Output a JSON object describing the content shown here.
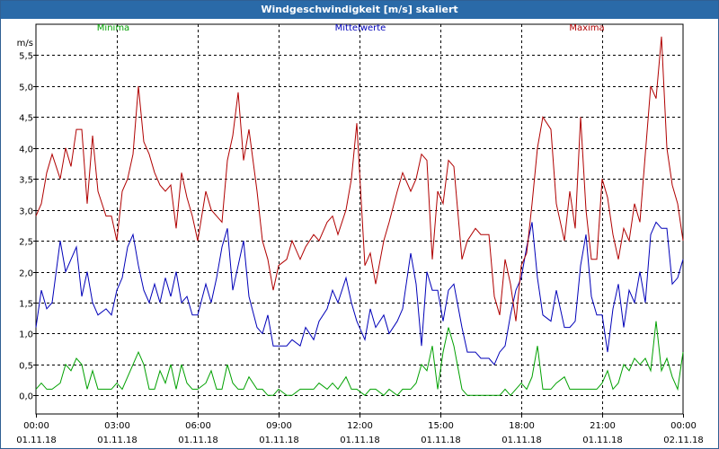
{
  "window": {
    "title": "Windgeschwindigkeit [m/s] skaliert"
  },
  "chart_data": {
    "type": "line",
    "title": "Windgeschwindigkeit [m/s] skaliert",
    "ylabel": "m/s",
    "ylim": [
      -0.3,
      6.0
    ],
    "yticks": [
      {
        "value": 0.0,
        "label": "0,0"
      },
      {
        "value": 0.5,
        "label": "0,5"
      },
      {
        "value": 1.0,
        "label": "1,0"
      },
      {
        "value": 1.5,
        "label": "1,5"
      },
      {
        "value": 2.0,
        "label": "2,0"
      },
      {
        "value": 2.5,
        "label": "2,5"
      },
      {
        "value": 3.0,
        "label": "3,0"
      },
      {
        "value": 3.5,
        "label": "3,5"
      },
      {
        "value": 4.0,
        "label": "4,0"
      },
      {
        "value": 4.5,
        "label": "4,5"
      },
      {
        "value": 5.0,
        "label": "5,0"
      },
      {
        "value": 5.5,
        "label": "5,5"
      }
    ],
    "xlim": [
      0,
      24
    ],
    "xticks": [
      {
        "hours": 0,
        "time": "00:00",
        "date": "01.11.18"
      },
      {
        "hours": 3,
        "time": "03:00",
        "date": "01.11.18"
      },
      {
        "hours": 6,
        "time": "06:00",
        "date": "01.11.18"
      },
      {
        "hours": 9,
        "time": "09:00",
        "date": "01.11.18"
      },
      {
        "hours": 12,
        "time": "12:00",
        "date": "01.11.18"
      },
      {
        "hours": 15,
        "time": "15:00",
        "date": "01.11.18"
      },
      {
        "hours": 18,
        "time": "18:00",
        "date": "01.11.18"
      },
      {
        "hours": 21,
        "time": "21:00",
        "date": "01.11.18"
      },
      {
        "hours": 24,
        "time": "00:00",
        "date": "02.11.18"
      }
    ],
    "grid": true,
    "legend": "top",
    "series": [
      {
        "name": "Minima",
        "color": "#00a000",
        "x": [
          0.0,
          0.2,
          0.4,
          0.6,
          0.9,
          1.1,
          1.3,
          1.5,
          1.7,
          1.9,
          2.1,
          2.3,
          2.6,
          2.8,
          3.0,
          3.2,
          3.4,
          3.6,
          3.8,
          4.0,
          4.2,
          4.4,
          4.6,
          4.8,
          5.0,
          5.2,
          5.4,
          5.6,
          5.8,
          6.0,
          6.3,
          6.5,
          6.7,
          6.9,
          7.1,
          7.3,
          7.5,
          7.7,
          7.9,
          8.2,
          8.4,
          8.6,
          8.8,
          9.0,
          9.3,
          9.5,
          9.8,
          10.0,
          10.3,
          10.5,
          10.8,
          11.0,
          11.2,
          11.5,
          11.7,
          11.9,
          12.2,
          12.4,
          12.6,
          12.9,
          13.1,
          13.4,
          13.6,
          13.9,
          14.1,
          14.3,
          14.5,
          14.7,
          14.9,
          15.1,
          15.3,
          15.5,
          15.8,
          16.0,
          16.3,
          16.5,
          16.8,
          17.0,
          17.2,
          17.4,
          17.6,
          17.8,
          18.0,
          18.2,
          18.4,
          18.6,
          18.8,
          19.1,
          19.3,
          19.6,
          19.8,
          20.0,
          20.2,
          20.4,
          20.6,
          20.8,
          21.0,
          21.2,
          21.4,
          21.6,
          21.8,
          22.0,
          22.2,
          22.4,
          22.6,
          22.8,
          23.0,
          23.2,
          23.4,
          23.6,
          23.8,
          24.0
        ],
        "values": [
          0.1,
          0.2,
          0.1,
          0.1,
          0.2,
          0.5,
          0.4,
          0.6,
          0.5,
          0.1,
          0.4,
          0.1,
          0.1,
          0.1,
          0.2,
          0.1,
          0.3,
          0.5,
          0.7,
          0.5,
          0.1,
          0.1,
          0.4,
          0.2,
          0.5,
          0.1,
          0.5,
          0.2,
          0.1,
          0.1,
          0.2,
          0.4,
          0.1,
          0.1,
          0.5,
          0.2,
          0.1,
          0.1,
          0.3,
          0.1,
          0.1,
          0.0,
          0.0,
          0.1,
          0.0,
          0.0,
          0.1,
          0.1,
          0.1,
          0.2,
          0.1,
          0.2,
          0.1,
          0.3,
          0.1,
          0.1,
          0.0,
          0.1,
          0.1,
          0.0,
          0.1,
          0.0,
          0.1,
          0.1,
          0.2,
          0.5,
          0.4,
          0.8,
          0.1,
          0.7,
          1.1,
          0.8,
          0.1,
          0.0,
          0.0,
          0.0,
          0.0,
          0.0,
          0.0,
          0.1,
          0.0,
          0.1,
          0.2,
          0.1,
          0.3,
          0.8,
          0.1,
          0.1,
          0.2,
          0.3,
          0.1,
          0.1,
          0.1,
          0.1,
          0.1,
          0.1,
          0.2,
          0.4,
          0.1,
          0.2,
          0.5,
          0.4,
          0.6,
          0.5,
          0.6,
          0.4,
          1.2,
          0.4,
          0.6,
          0.3,
          0.1,
          0.7
        ]
      },
      {
        "name": "Mittelwerte",
        "color": "#0000b8",
        "x": [
          0.0,
          0.2,
          0.4,
          0.6,
          0.9,
          1.1,
          1.3,
          1.5,
          1.7,
          1.9,
          2.1,
          2.3,
          2.6,
          2.8,
          3.0,
          3.2,
          3.4,
          3.6,
          3.8,
          4.0,
          4.2,
          4.4,
          4.6,
          4.8,
          5.0,
          5.2,
          5.4,
          5.6,
          5.8,
          6.0,
          6.3,
          6.5,
          6.7,
          6.9,
          7.1,
          7.3,
          7.5,
          7.7,
          7.9,
          8.2,
          8.4,
          8.6,
          8.8,
          9.0,
          9.3,
          9.5,
          9.8,
          10.0,
          10.3,
          10.5,
          10.8,
          11.0,
          11.2,
          11.5,
          11.7,
          11.9,
          12.2,
          12.4,
          12.6,
          12.9,
          13.1,
          13.4,
          13.6,
          13.9,
          14.1,
          14.3,
          14.5,
          14.7,
          14.9,
          15.1,
          15.3,
          15.5,
          15.8,
          16.0,
          16.3,
          16.5,
          16.8,
          17.0,
          17.2,
          17.4,
          17.6,
          17.8,
          18.0,
          18.2,
          18.4,
          18.6,
          18.8,
          19.1,
          19.3,
          19.6,
          19.8,
          20.0,
          20.2,
          20.4,
          20.6,
          20.8,
          21.0,
          21.2,
          21.4,
          21.6,
          21.8,
          22.0,
          22.2,
          22.4,
          22.6,
          22.8,
          23.0,
          23.2,
          23.4,
          23.6,
          23.8,
          24.0
        ],
        "values": [
          1.1,
          1.7,
          1.4,
          1.5,
          2.5,
          2.0,
          2.2,
          2.4,
          1.6,
          2.0,
          1.5,
          1.3,
          1.4,
          1.3,
          1.7,
          1.9,
          2.4,
          2.6,
          2.1,
          1.7,
          1.5,
          1.8,
          1.5,
          1.9,
          1.6,
          2.0,
          1.5,
          1.6,
          1.3,
          1.3,
          1.8,
          1.5,
          1.9,
          2.4,
          2.7,
          1.7,
          2.1,
          2.5,
          1.6,
          1.1,
          1.0,
          1.3,
          0.8,
          0.8,
          0.8,
          0.9,
          0.8,
          1.1,
          0.9,
          1.2,
          1.4,
          1.7,
          1.5,
          1.9,
          1.5,
          1.2,
          0.9,
          1.4,
          1.1,
          1.3,
          1.0,
          1.2,
          1.4,
          2.3,
          1.8,
          0.8,
          2.0,
          1.7,
          1.7,
          1.2,
          1.7,
          1.8,
          1.1,
          0.7,
          0.7,
          0.6,
          0.6,
          0.5,
          0.7,
          0.8,
          1.3,
          1.7,
          1.9,
          2.4,
          2.8,
          1.9,
          1.3,
          1.2,
          1.7,
          1.1,
          1.1,
          1.2,
          2.1,
          2.6,
          1.6,
          1.3,
          1.3,
          0.7,
          1.4,
          1.8,
          1.1,
          1.7,
          1.5,
          2.0,
          1.5,
          2.6,
          2.8,
          2.7,
          2.7,
          1.8,
          1.9,
          2.2
        ]
      },
      {
        "name": "Maxima",
        "color": "#b00000",
        "x": [
          0.0,
          0.2,
          0.4,
          0.6,
          0.9,
          1.1,
          1.3,
          1.5,
          1.7,
          1.9,
          2.1,
          2.3,
          2.6,
          2.8,
          3.0,
          3.2,
          3.4,
          3.6,
          3.8,
          4.0,
          4.2,
          4.4,
          4.6,
          4.8,
          5.0,
          5.2,
          5.4,
          5.6,
          5.8,
          6.0,
          6.3,
          6.5,
          6.7,
          6.9,
          7.1,
          7.3,
          7.5,
          7.7,
          7.9,
          8.2,
          8.4,
          8.6,
          8.8,
          9.0,
          9.3,
          9.5,
          9.8,
          10.0,
          10.3,
          10.5,
          10.8,
          11.0,
          11.2,
          11.5,
          11.7,
          11.9,
          12.2,
          12.4,
          12.6,
          12.9,
          13.1,
          13.4,
          13.6,
          13.9,
          14.1,
          14.3,
          14.5,
          14.7,
          14.9,
          15.1,
          15.3,
          15.5,
          15.8,
          16.0,
          16.3,
          16.5,
          16.8,
          17.0,
          17.2,
          17.4,
          17.6,
          17.8,
          18.0,
          18.2,
          18.4,
          18.6,
          18.8,
          19.1,
          19.3,
          19.6,
          19.8,
          20.0,
          20.2,
          20.4,
          20.6,
          20.8,
          21.0,
          21.2,
          21.4,
          21.6,
          21.8,
          22.0,
          22.2,
          22.4,
          22.6,
          22.8,
          23.0,
          23.2,
          23.4,
          23.6,
          23.8,
          24.0
        ],
        "values": [
          2.9,
          3.1,
          3.6,
          3.9,
          3.5,
          4.0,
          3.7,
          4.3,
          4.3,
          3.1,
          4.2,
          3.3,
          2.9,
          2.9,
          2.5,
          3.3,
          3.5,
          3.9,
          5.0,
          4.1,
          3.9,
          3.6,
          3.4,
          3.3,
          3.4,
          2.7,
          3.6,
          3.2,
          2.9,
          2.5,
          3.3,
          3.0,
          2.9,
          2.8,
          3.8,
          4.2,
          4.9,
          3.8,
          4.3,
          3.3,
          2.5,
          2.2,
          1.7,
          2.1,
          2.2,
          2.5,
          2.2,
          2.4,
          2.6,
          2.5,
          2.8,
          2.9,
          2.6,
          3.0,
          3.5,
          4.4,
          2.1,
          2.3,
          1.8,
          2.5,
          2.8,
          3.3,
          3.6,
          3.3,
          3.5,
          3.9,
          3.8,
          2.2,
          3.3,
          3.1,
          3.8,
          3.7,
          2.2,
          2.5,
          2.7,
          2.6,
          2.6,
          1.6,
          1.3,
          2.2,
          1.8,
          1.2,
          2.1,
          2.3,
          3.1,
          4.0,
          4.5,
          4.3,
          3.1,
          2.5,
          3.3,
          2.7,
          4.5,
          3.0,
          2.2,
          2.2,
          3.5,
          3.2,
          2.6,
          2.2,
          2.7,
          2.5,
          3.1,
          2.8,
          3.9,
          5.0,
          4.8,
          5.8,
          4.0,
          3.4,
          3.1,
          2.5
        ]
      }
    ]
  }
}
